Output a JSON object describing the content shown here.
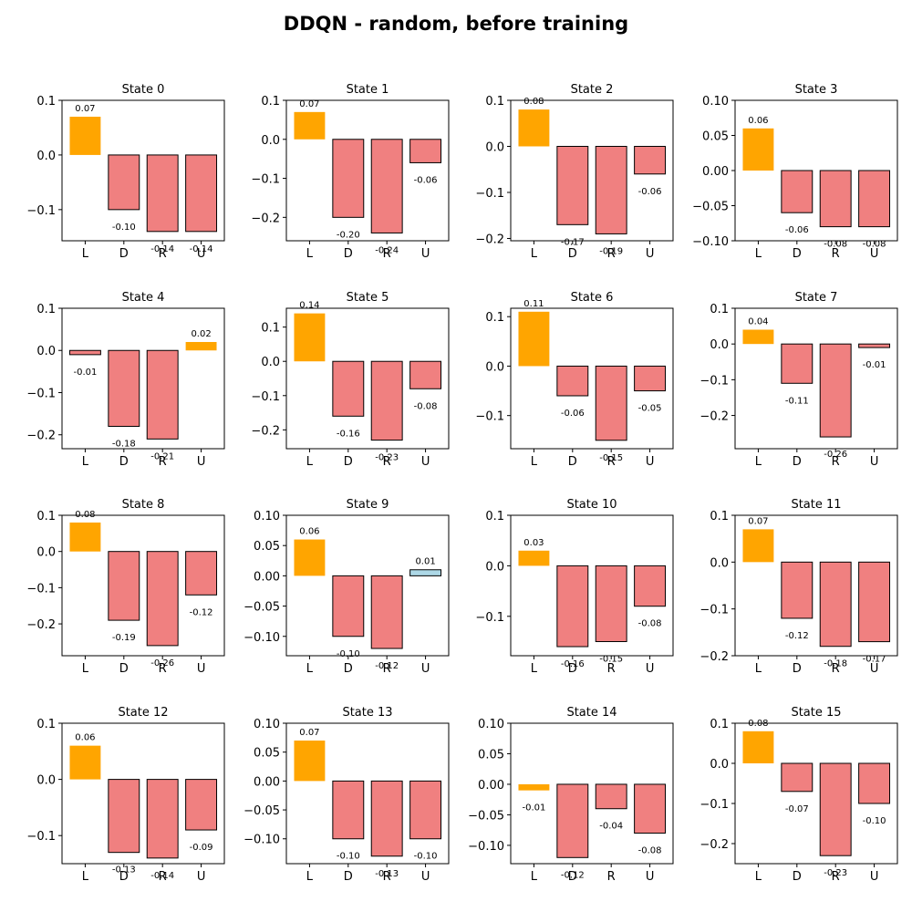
{
  "figure_title": "DDQN - random, before training",
  "colors": {
    "best_positive": "#ffa500",
    "best_negative": "#ffa500",
    "other_negative": "#f08080",
    "other_positive": "#add8e6",
    "edge": "#000000"
  },
  "chart_data": [
    {
      "type": "bar",
      "title": "State 0",
      "categories": [
        "L",
        "D",
        "R",
        "U"
      ],
      "values": [
        0.07,
        -0.1,
        -0.14,
        -0.14
      ],
      "value_labels": [
        "0.07",
        "-0.10",
        "-0.14",
        "-0.14"
      ],
      "best_index": 0,
      "ylim": [
        -0.157,
        0.1
      ],
      "yticks": [
        0.1,
        0.0,
        -0.1
      ],
      "ytick_labels": [
        "0.1",
        "0.0",
        "−0.1"
      ]
    },
    {
      "type": "bar",
      "title": "State 1",
      "categories": [
        "L",
        "D",
        "R",
        "U"
      ],
      "values": [
        0.07,
        -0.2,
        -0.24,
        -0.06
      ],
      "value_labels": [
        "0.07",
        "-0.20",
        "-0.24",
        "-0.06"
      ],
      "best_index": 0,
      "ylim": [
        -0.26,
        0.1
      ],
      "yticks": [
        0.1,
        0.0,
        -0.1,
        -0.2
      ],
      "ytick_labels": [
        "0.1",
        "0.0",
        "−0.1",
        "−0.2"
      ]
    },
    {
      "type": "bar",
      "title": "State 2",
      "categories": [
        "L",
        "D",
        "R",
        "U"
      ],
      "values": [
        0.08,
        -0.17,
        -0.19,
        -0.06
      ],
      "value_labels": [
        "0.08",
        "-0.17",
        "-0.19",
        "-0.06"
      ],
      "best_index": 0,
      "ylim": [
        -0.205,
        0.1
      ],
      "yticks": [
        0.1,
        0.0,
        -0.1,
        -0.2
      ],
      "ytick_labels": [
        "0.1",
        "0.0",
        "−0.1",
        "−0.2"
      ]
    },
    {
      "type": "bar",
      "title": "State 3",
      "categories": [
        "L",
        "D",
        "R",
        "U"
      ],
      "values": [
        0.06,
        -0.06,
        -0.08,
        -0.08
      ],
      "value_labels": [
        "0.06",
        "-0.06",
        "-0.08",
        "-0.08"
      ],
      "best_index": 0,
      "ylim": [
        -0.1,
        0.1
      ],
      "yticks": [
        0.1,
        0.05,
        0.0,
        -0.05,
        -0.1
      ],
      "ytick_labels": [
        "0.10",
        "0.05",
        "0.00",
        "−0.05",
        "−0.10"
      ]
    },
    {
      "type": "bar",
      "title": "State 4",
      "categories": [
        "L",
        "D",
        "R",
        "U"
      ],
      "values": [
        -0.01,
        -0.18,
        -0.21,
        0.02
      ],
      "value_labels": [
        "-0.01",
        "-0.18",
        "-0.21",
        "0.02"
      ],
      "best_index": 3,
      "ylim": [
        -0.233,
        0.1
      ],
      "yticks": [
        0.1,
        0.0,
        -0.1,
        -0.2
      ],
      "ytick_labels": [
        "0.1",
        "0.0",
        "−0.1",
        "−0.2"
      ]
    },
    {
      "type": "bar",
      "title": "State 5",
      "categories": [
        "L",
        "D",
        "R",
        "U"
      ],
      "values": [
        0.14,
        -0.16,
        -0.23,
        -0.08
      ],
      "value_labels": [
        "0.14",
        "-0.16",
        "-0.23",
        "-0.08"
      ],
      "best_index": 0,
      "ylim": [
        -0.255,
        0.155
      ],
      "yticks": [
        0.1,
        0.0,
        -0.1,
        -0.2
      ],
      "ytick_labels": [
        "0.1",
        "0.0",
        "−0.1",
        "−0.2"
      ]
    },
    {
      "type": "bar",
      "title": "State 6",
      "categories": [
        "L",
        "D",
        "R",
        "U"
      ],
      "values": [
        0.11,
        -0.06,
        -0.15,
        -0.05
      ],
      "value_labels": [
        "0.11",
        "-0.06",
        "-0.15",
        "-0.05"
      ],
      "best_index": 0,
      "ylim": [
        -0.167,
        0.117
      ],
      "yticks": [
        0.1,
        0.0,
        -0.1
      ],
      "ytick_labels": [
        "0.1",
        "0.0",
        "−0.1"
      ]
    },
    {
      "type": "bar",
      "title": "State 7",
      "categories": [
        "L",
        "D",
        "R",
        "U"
      ],
      "values": [
        0.04,
        -0.11,
        -0.26,
        -0.01
      ],
      "value_labels": [
        "0.04",
        "-0.11",
        "-0.26",
        "-0.01"
      ],
      "best_index": 0,
      "ylim": [
        -0.293,
        0.1
      ],
      "yticks": [
        0.1,
        0.0,
        -0.1,
        -0.2
      ],
      "ytick_labels": [
        "0.1",
        "0.0",
        "−0.1",
        "−0.2"
      ]
    },
    {
      "type": "bar",
      "title": "State 8",
      "categories": [
        "L",
        "D",
        "R",
        "U"
      ],
      "values": [
        0.08,
        -0.19,
        -0.26,
        -0.12
      ],
      "value_labels": [
        "0.08",
        "-0.19",
        "-0.26",
        "-0.12"
      ],
      "best_index": 0,
      "ylim": [
        -0.288,
        0.1
      ],
      "yticks": [
        0.1,
        0.0,
        -0.1,
        -0.2
      ],
      "ytick_labels": [
        "0.1",
        "0.0",
        "−0.1",
        "−0.2"
      ]
    },
    {
      "type": "bar",
      "title": "State 9",
      "categories": [
        "L",
        "D",
        "R",
        "U"
      ],
      "values": [
        0.06,
        -0.1,
        -0.12,
        0.01
      ],
      "value_labels": [
        "0.06",
        "-0.10",
        "-0.12",
        "0.01"
      ],
      "best_index": 0,
      "ylim": [
        -0.132,
        0.1
      ],
      "yticks": [
        0.1,
        0.05,
        0.0,
        -0.05,
        -0.1
      ],
      "ytick_labels": [
        "0.10",
        "0.05",
        "0.00",
        "−0.05",
        "−0.10"
      ]
    },
    {
      "type": "bar",
      "title": "State 10",
      "categories": [
        "L",
        "D",
        "R",
        "U"
      ],
      "values": [
        0.03,
        -0.16,
        -0.15,
        -0.08
      ],
      "value_labels": [
        "0.03",
        "-0.16",
        "-0.15",
        "-0.08"
      ],
      "best_index": 0,
      "ylim": [
        -0.178,
        0.1
      ],
      "yticks": [
        0.1,
        0.0,
        -0.1
      ],
      "ytick_labels": [
        "0.1",
        "0.0",
        "−0.1"
      ]
    },
    {
      "type": "bar",
      "title": "State 11",
      "categories": [
        "L",
        "D",
        "R",
        "U"
      ],
      "values": [
        0.07,
        -0.12,
        -0.18,
        -0.17
      ],
      "value_labels": [
        "0.07",
        "-0.12",
        "-0.18",
        "-0.17"
      ],
      "best_index": 0,
      "ylim": [
        -0.2,
        0.1
      ],
      "yticks": [
        0.1,
        0.0,
        -0.1,
        -0.2
      ],
      "ytick_labels": [
        "0.1",
        "0.0",
        "−0.1",
        "−0.2"
      ]
    },
    {
      "type": "bar",
      "title": "State 12",
      "categories": [
        "L",
        "D",
        "R",
        "U"
      ],
      "values": [
        0.06,
        -0.13,
        -0.14,
        -0.09
      ],
      "value_labels": [
        "0.06",
        "-0.13",
        "-0.14",
        "-0.09"
      ],
      "best_index": 0,
      "ylim": [
        -0.15,
        0.1
      ],
      "yticks": [
        0.1,
        0.0,
        -0.1
      ],
      "ytick_labels": [
        "0.1",
        "0.0",
        "−0.1"
      ]
    },
    {
      "type": "bar",
      "title": "State 13",
      "categories": [
        "L",
        "D",
        "R",
        "U"
      ],
      "values": [
        0.07,
        -0.1,
        -0.13,
        -0.1
      ],
      "value_labels": [
        "0.07",
        "-0.10",
        "-0.13",
        "-0.10"
      ],
      "best_index": 0,
      "ylim": [
        -0.143,
        0.1
      ],
      "yticks": [
        0.1,
        0.05,
        0.0,
        -0.05,
        -0.1
      ],
      "ytick_labels": [
        "0.10",
        "0.05",
        "0.00",
        "−0.05",
        "−0.10"
      ]
    },
    {
      "type": "bar",
      "title": "State 14",
      "categories": [
        "L",
        "D",
        "R",
        "U"
      ],
      "values": [
        -0.01,
        -0.12,
        -0.04,
        -0.08
      ],
      "value_labels": [
        "-0.01",
        "-0.12",
        "-0.04",
        "-0.08"
      ],
      "best_index": 0,
      "ylim": [
        -0.13,
        0.1
      ],
      "yticks": [
        0.1,
        0.05,
        0.0,
        -0.05,
        -0.1
      ],
      "ytick_labels": [
        "0.10",
        "0.05",
        "0.00",
        "−0.05",
        "−0.10"
      ]
    },
    {
      "type": "bar",
      "title": "State 15",
      "categories": [
        "L",
        "D",
        "R",
        "U"
      ],
      "values": [
        0.08,
        -0.07,
        -0.23,
        -0.1
      ],
      "value_labels": [
        "0.08",
        "-0.07",
        "-0.23",
        "-0.10"
      ],
      "best_index": 0,
      "ylim": [
        -0.25,
        0.1
      ],
      "yticks": [
        0.1,
        0.0,
        -0.1,
        -0.2
      ],
      "ytick_labels": [
        "0.1",
        "0.0",
        "−0.1",
        "−0.2"
      ]
    }
  ]
}
